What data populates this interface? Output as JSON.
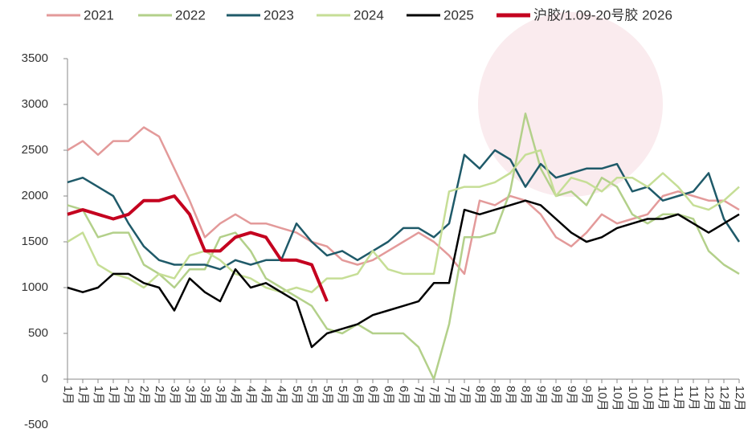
{
  "chart_data": {
    "type": "line",
    "categories": [
      "1月",
      "1月",
      "1月",
      "1月",
      "2月",
      "2月",
      "2月",
      "3月",
      "3月",
      "3月",
      "3月",
      "4月",
      "4月",
      "4月",
      "4月",
      "5月",
      "5月",
      "5月",
      "5月",
      "6月",
      "6月",
      "6月",
      "6月",
      "7月",
      "7月",
      "7月",
      "7月",
      "8月",
      "8月",
      "8月",
      "8月",
      "9月",
      "9月",
      "9月",
      "9月",
      "10月",
      "10月",
      "10月",
      "10月",
      "11月",
      "11月",
      "11月",
      "12月",
      "12月",
      "12月"
    ],
    "ylim": [
      -500,
      3500
    ],
    "yticks": [
      -500,
      0,
      500,
      1000,
      1500,
      2000,
      2500,
      3000,
      3500
    ],
    "series": [
      {
        "name": "2021",
        "color": "#e39a9a",
        "values": [
          2500,
          2600,
          2450,
          2600,
          2600,
          2750,
          2650,
          2300,
          1950,
          1550,
          1700,
          1800,
          1700,
          1700,
          1650,
          1600,
          1500,
          1450,
          1300,
          1250,
          1300,
          1400,
          1500,
          1600,
          1500,
          1350,
          1150,
          1950,
          1900,
          2000,
          1950,
          1800,
          1550,
          1450,
          1600,
          1800,
          1700,
          1750,
          1800,
          2000,
          2050,
          2000,
          1950,
          1950,
          1850
        ]
      },
      {
        "name": "2022",
        "color": "#b3d08a",
        "values": [
          1900,
          1850,
          1550,
          1600,
          1600,
          1250,
          1150,
          1000,
          1200,
          1200,
          1550,
          1600,
          1400,
          1100,
          1000,
          900,
          800,
          550,
          500,
          600,
          500,
          500,
          500,
          350,
          0,
          600,
          1550,
          1550,
          1600,
          2050,
          2900,
          2300,
          2000,
          2050,
          1900,
          2200,
          2100,
          1800,
          1700,
          1800,
          1800,
          1750,
          1400,
          1250,
          1150
        ]
      },
      {
        "name": "2023",
        "color": "#1f5a69",
        "values": [
          2150,
          2200,
          2100,
          2000,
          1700,
          1450,
          1300,
          1250,
          1250,
          1250,
          1200,
          1300,
          1250,
          1300,
          1300,
          1700,
          1500,
          1350,
          1400,
          1300,
          1400,
          1500,
          1650,
          1650,
          1550,
          1700,
          2450,
          2300,
          2500,
          2400,
          2100,
          2350,
          2200,
          2250,
          2300,
          2300,
          2350,
          2050,
          2100,
          1950,
          2000,
          2050,
          2250,
          1750,
          1500
        ]
      },
      {
        "name": "2024",
        "color": "#c6de96",
        "values": [
          1500,
          1600,
          1250,
          1150,
          1100,
          1000,
          1150,
          1100,
          1350,
          1400,
          1300,
          1150,
          1100,
          1000,
          950,
          1000,
          950,
          1100,
          1100,
          1150,
          1400,
          1200,
          1150,
          1150,
          1150,
          2050,
          2100,
          2100,
          2150,
          2250,
          2450,
          2500,
          2000,
          2200,
          2150,
          2050,
          2200,
          2200,
          2100,
          2250,
          2100,
          1900,
          1850,
          1950,
          2100
        ]
      },
      {
        "name": "2025",
        "color": "#000000",
        "values": [
          1000,
          950,
          1000,
          1150,
          1150,
          1050,
          1000,
          750,
          1100,
          950,
          850,
          1200,
          1000,
          1050,
          950,
          850,
          350,
          500,
          550,
          600,
          700,
          750,
          800,
          850,
          1050,
          1050,
          1850,
          1800,
          1850,
          1900,
          1950,
          1900,
          1750,
          1600,
          1500,
          1550,
          1650,
          1700,
          1750,
          1750,
          1800,
          1700,
          1600,
          1700,
          1800
        ]
      },
      {
        "name": "沪胶/1.09-20号胶 2026",
        "color": "#c4001f",
        "values": [
          1800,
          1850,
          1800,
          1750,
          1800,
          1950,
          1950,
          2000,
          1800,
          1400,
          1400,
          1550,
          1600,
          1550,
          1300,
          1300,
          1250,
          850,
          null,
          null,
          null,
          null,
          null,
          null,
          null,
          null,
          null,
          null,
          null,
          null,
          null,
          null,
          null,
          null,
          null,
          null,
          null,
          null,
          null,
          null,
          null,
          null,
          null,
          null,
          null
        ]
      }
    ]
  }
}
